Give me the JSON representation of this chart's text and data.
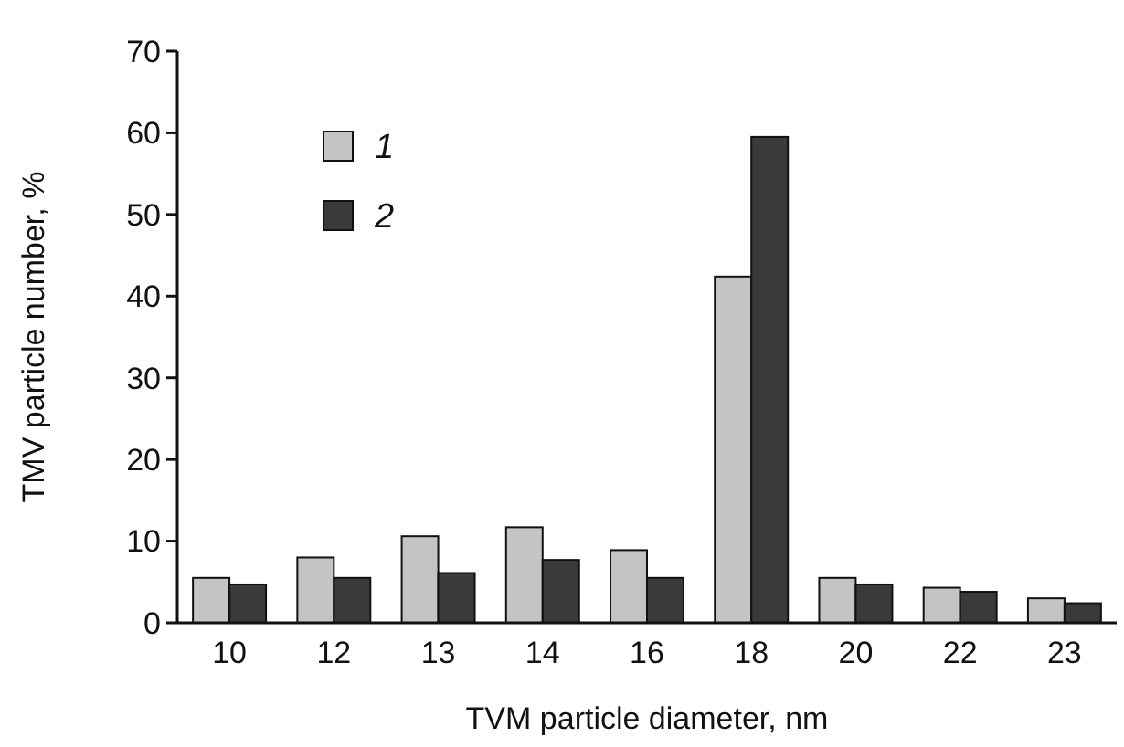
{
  "chart_data": {
    "type": "bar",
    "xlabel": "TVM particle diameter, nm",
    "ylabel": "TMV particle number, %",
    "categories": [
      "10",
      "12",
      "13",
      "14",
      "16",
      "18",
      "20",
      "22",
      "23"
    ],
    "series": [
      {
        "name": "1",
        "color": "#c4c4c4",
        "values": [
          5.5,
          8.0,
          10.6,
          11.7,
          8.9,
          42.4,
          5.5,
          4.3,
          3.0
        ]
      },
      {
        "name": "2",
        "color": "#3a3a3a",
        "values": [
          4.7,
          5.5,
          6.1,
          7.7,
          5.5,
          59.5,
          4.7,
          3.8,
          2.4
        ]
      }
    ],
    "ylim": [
      0,
      70
    ],
    "yticks": [
      0,
      10,
      20,
      30,
      40,
      50,
      60,
      70
    ],
    "grid": false,
    "legend": "top left"
  }
}
